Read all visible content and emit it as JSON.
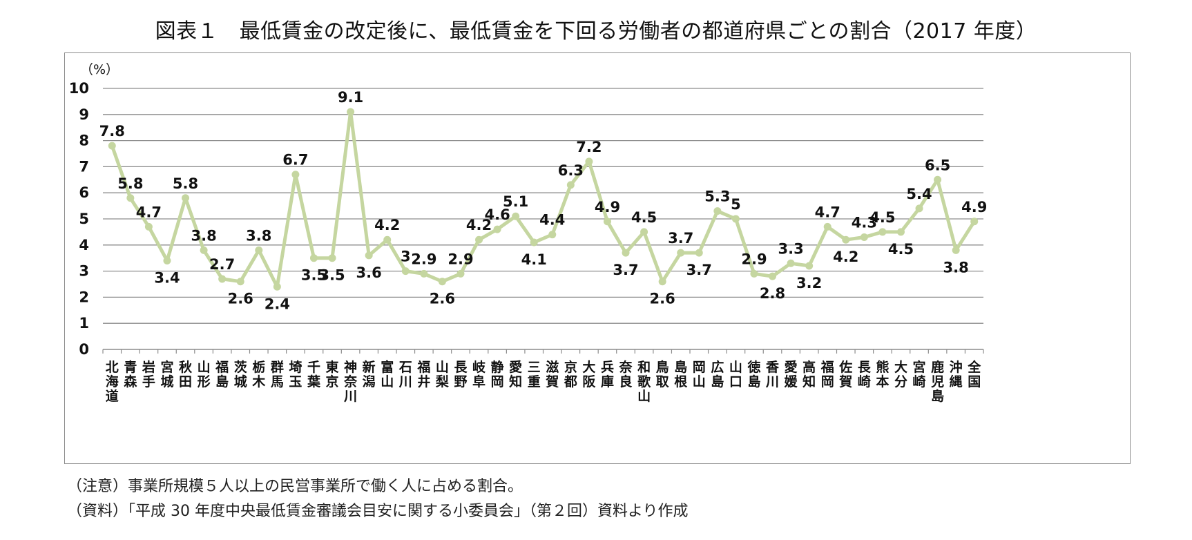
{
  "title": "図表１　最低賃金の改定後に、最低賃金を下回る労働者の都道府県ごとの割合（2017 年度）",
  "notes": {
    "caution": "（注意）事業所規模５人以上の民営事業所で働く人に占める割合。",
    "source": "（資料）「平成 30 年度中央最低賃金審議会目安に関する小委員会」（第２回）資料より作成"
  },
  "chart_data": {
    "type": "line",
    "ylabel": "（%）",
    "ylim": [
      0,
      10
    ],
    "yticks": [
      "0",
      "1",
      "2",
      "3",
      "4",
      "5",
      "6",
      "7",
      "8",
      "9",
      "10"
    ],
    "grid": true,
    "legend": "none",
    "series_color": "#c5d6a0",
    "categories": [
      "北海道",
      "青森",
      "岩手",
      "宮城",
      "秋田",
      "山形",
      "福島",
      "茨城",
      "栃木",
      "群馬",
      "埼玉",
      "千葉",
      "東京",
      "神奈川",
      "新潟",
      "富山",
      "石川",
      "福井",
      "山梨",
      "長野",
      "岐阜",
      "静岡",
      "愛知",
      "三重",
      "滋賀",
      "京都",
      "大阪",
      "兵庫",
      "奈良",
      "和歌山",
      "鳥取",
      "島根",
      "岡山",
      "広島",
      "山口",
      "徳島",
      "香川",
      "愛媛",
      "高知",
      "福岡",
      "佐賀",
      "長崎",
      "熊本",
      "大分",
      "宮崎",
      "鹿児島",
      "沖縄",
      "全国"
    ],
    "values": [
      7.8,
      5.8,
      4.7,
      3.4,
      5.8,
      3.8,
      2.7,
      2.6,
      3.8,
      2.4,
      6.7,
      3.5,
      3.5,
      9.1,
      3.6,
      4.2,
      3,
      2.9,
      2.6,
      2.9,
      4.2,
      4.6,
      5.1,
      4.1,
      4.4,
      6.3,
      7.2,
      4.9,
      3.7,
      4.5,
      2.6,
      3.7,
      3.7,
      5.3,
      5,
      2.9,
      2.8,
      3.3,
      3.2,
      4.7,
      4.2,
      4.3,
      4.5,
      4.5,
      5.4,
      6.5,
      3.8,
      4.9
    ],
    "data_labels": [
      "7.8",
      "5.8",
      "4.7",
      "3.4",
      "5.8",
      "3.8",
      "2.7",
      "2.6",
      "3.8",
      "2.4",
      "6.7",
      "3.5",
      "3.5",
      "9.1",
      "3.6",
      "4.2",
      "3",
      "2.9",
      "2.6",
      "2.9",
      "4.2",
      "4.6",
      "5.1",
      "4.1",
      "4.4",
      "6.3",
      "7.2",
      "4.9",
      "3.7",
      "4.5",
      "2.6",
      "3.7",
      "3.7",
      "5.3",
      "5",
      "2.9",
      "2.8",
      "3.3",
      "3.2",
      "4.7",
      "4.2",
      "4.3",
      "4.5",
      "4.5",
      "5.4",
      "6.5",
      "3.8",
      "4.9"
    ]
  }
}
